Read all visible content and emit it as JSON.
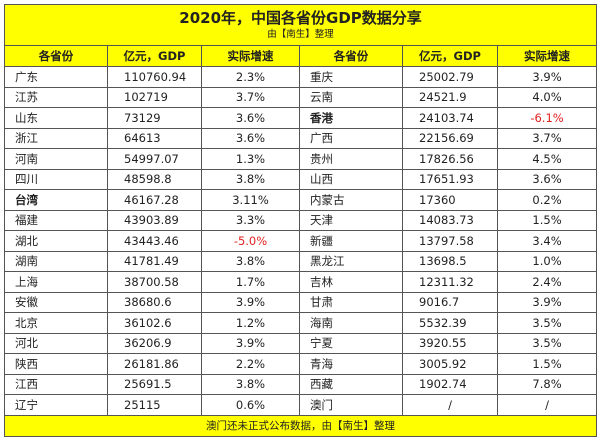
{
  "title": "2020年，中国各省份GDP数据分享",
  "subtitle": "由【南生】整理",
  "headers": [
    "各省份",
    "亿元，GDP",
    "实际增速",
    "各省份",
    "亿元，GDP",
    "实际增速"
  ],
  "left_rows": [
    {
      "province": "广东",
      "gdp": "110760.94",
      "rate": "2.3%"
    },
    {
      "province": "江苏",
      "gdp": "102719",
      "rate": "3.7%"
    },
    {
      "province": "山东",
      "gdp": "73129",
      "rate": "3.6%"
    },
    {
      "province": "浙江",
      "gdp": "64613",
      "rate": "3.6%"
    },
    {
      "province": "河南",
      "gdp": "54997.07",
      "rate": "1.3%"
    },
    {
      "province": "四川",
      "gdp": "48598.8",
      "rate": "3.8%"
    },
    {
      "province": "台湾",
      "gdp": "46167.28",
      "rate": "3.11%"
    },
    {
      "province": "福建",
      "gdp": "43903.89",
      "rate": "3.3%"
    },
    {
      "province": "湖北",
      "gdp": "43443.46",
      "rate": "-5.0%"
    },
    {
      "province": "湖南",
      "gdp": "41781.49",
      "rate": "3.8%"
    },
    {
      "province": "上海",
      "gdp": "38700.58",
      "rate": "1.7%"
    },
    {
      "province": "安徽",
      "gdp": "38680.6",
      "rate": "3.9%"
    },
    {
      "province": "北京",
      "gdp": "36102.6",
      "rate": "1.2%"
    },
    {
      "province": "河北",
      "gdp": "36206.9",
      "rate": "3.9%"
    },
    {
      "province": "陕西",
      "gdp": "26181.86",
      "rate": "2.2%"
    },
    {
      "province": "江西",
      "gdp": "25691.5",
      "rate": "3.8%"
    },
    {
      "province": "辽宁",
      "gdp": "25115",
      "rate": "0.6%"
    }
  ],
  "right_rows": [
    {
      "province": "重庆",
      "gdp": "25002.79",
      "rate": "3.9%"
    },
    {
      "province": "云南",
      "gdp": "24521.9",
      "rate": "4.0%"
    },
    {
      "province": "香港",
      "gdp": "24103.74",
      "rate": "-6.1%"
    },
    {
      "province": "广西",
      "gdp": "22156.69",
      "rate": "3.7%"
    },
    {
      "province": "贵州",
      "gdp": "17826.56",
      "rate": "4.5%"
    },
    {
      "province": "山西",
      "gdp": "17651.93",
      "rate": "3.6%"
    },
    {
      "province": "内蒙古",
      "gdp": "17360",
      "rate": "0.2%"
    },
    {
      "province": "天津",
      "gdp": "14083.73",
      "rate": "1.5%"
    },
    {
      "province": "新疆",
      "gdp": "13797.58",
      "rate": "3.4%"
    },
    {
      "province": "黑龙江",
      "gdp": "13698.5",
      "rate": "1.0%"
    },
    {
      "province": "吉林",
      "gdp": "12311.32",
      "rate": "2.4%"
    },
    {
      "province": "甘肃",
      "gdp": "9016.7",
      "rate": "3.9%"
    },
    {
      "province": "海南",
      "gdp": "5532.39",
      "rate": "3.5%"
    },
    {
      "province": "宁夏",
      "gdp": "3920.55",
      "rate": "3.5%"
    },
    {
      "province": "青海",
      "gdp": "3005.92",
      "rate": "1.5%"
    },
    {
      "province": "西藏",
      "gdp": "1902.74",
      "rate": "7.8%"
    },
    {
      "province": "澳门",
      "gdp": "/",
      "rate": "/"
    }
  ],
  "footer": "澳门还未正式公布数据，由【南生】整理",
  "colors": {
    "header_bg": "#ffff00",
    "negative": "#e0201e"
  }
}
